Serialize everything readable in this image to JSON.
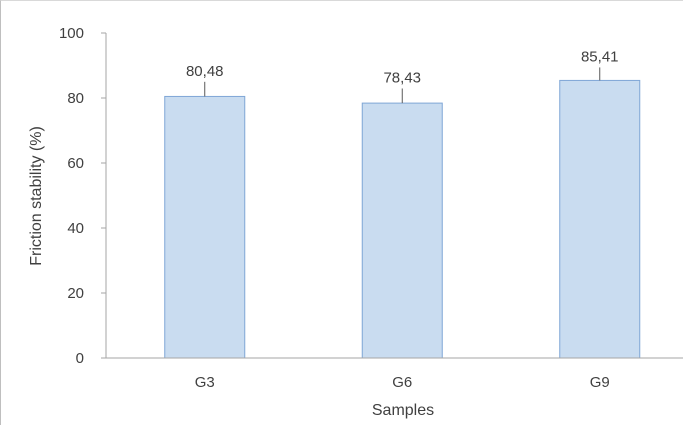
{
  "chart_data": {
    "type": "bar",
    "categories": [
      "G3",
      "G6",
      "G9"
    ],
    "values": [
      80.48,
      78.43,
      85.41
    ],
    "data_labels": [
      "80,48",
      "78,43",
      "85,41"
    ],
    "error_up": [
      4.5,
      4.5,
      4.0
    ],
    "xlabel": "Samples",
    "ylabel": "Friction stability (%)",
    "ylim": [
      0,
      100
    ],
    "yticks": [
      0,
      20,
      40,
      60,
      80,
      100
    ],
    "ytick_labels": [
      "0",
      "20",
      "40",
      "60",
      "80",
      "100"
    ],
    "grid": false,
    "legend": "none",
    "colors": {
      "bar_fill": "#c9dcf0",
      "bar_stroke": "#7fa6d6",
      "axis": "#a6a6a6",
      "error_bar": "#595959"
    }
  }
}
